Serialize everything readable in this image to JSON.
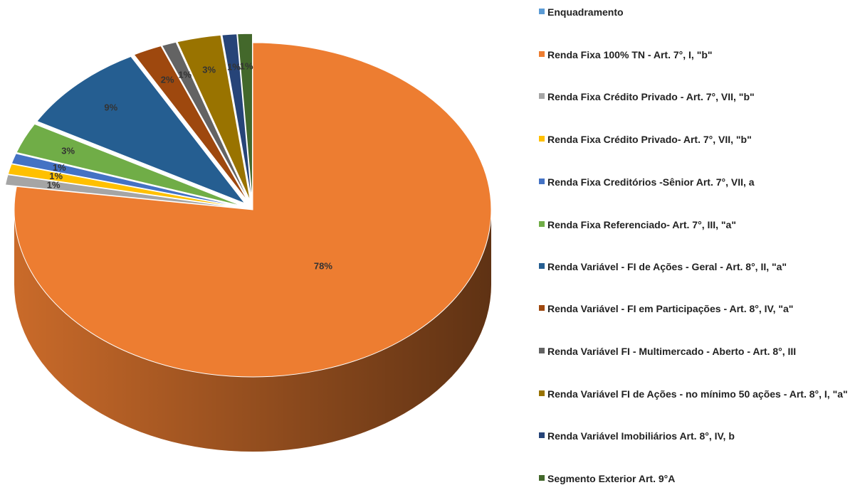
{
  "chart_data": {
    "type": "pie3d",
    "categories": [
      "Enquadramento",
      "Renda Fixa 100% TN - Art. 7°, I, \"b\"",
      "Renda Fixa Crédito Privado - Art. 7°, VII, \"b\"",
      "Renda Fixa Crédito Privado- Art. 7°, VII, \"b\"",
      "Renda Fixa Creditórios -Sênior  Art. 7°, VII, a",
      "Renda Fixa Referenciado- Art. 7°, III, \"a\"",
      "Renda Variável - FI de Ações - Geral - Art. 8°, II, \"a\"",
      "Renda Variável - FI em Participações - Art. 8°, IV, \"a\"",
      "Renda Variável FI - Multimercado - Aberto - Art. 8°, III",
      "Renda Variável FI de Ações - no mínimo 50 ações - Art. 8°, I, \"a\"",
      "Renda Variável Imobiliários Art. 8°, IV, b",
      "Segmento Exterior Art. 9°A"
    ],
    "values": [
      0,
      78,
      1,
      1,
      1,
      3,
      9,
      2,
      1,
      3,
      1,
      1
    ],
    "value_labels": [
      null,
      "78%",
      "1%",
      "1%",
      "1%",
      "3%",
      "9%",
      "2%",
      "1%",
      "3%",
      "1%",
      "1%"
    ],
    "colors": [
      "#5b9bd5",
      "#ed7d31",
      "#a5a5a5",
      "#ffc000",
      "#4472c4",
      "#70ad47",
      "#255e91",
      "#9e480e",
      "#636363",
      "#997300",
      "#264478",
      "#43682b"
    ],
    "legend": "right"
  }
}
